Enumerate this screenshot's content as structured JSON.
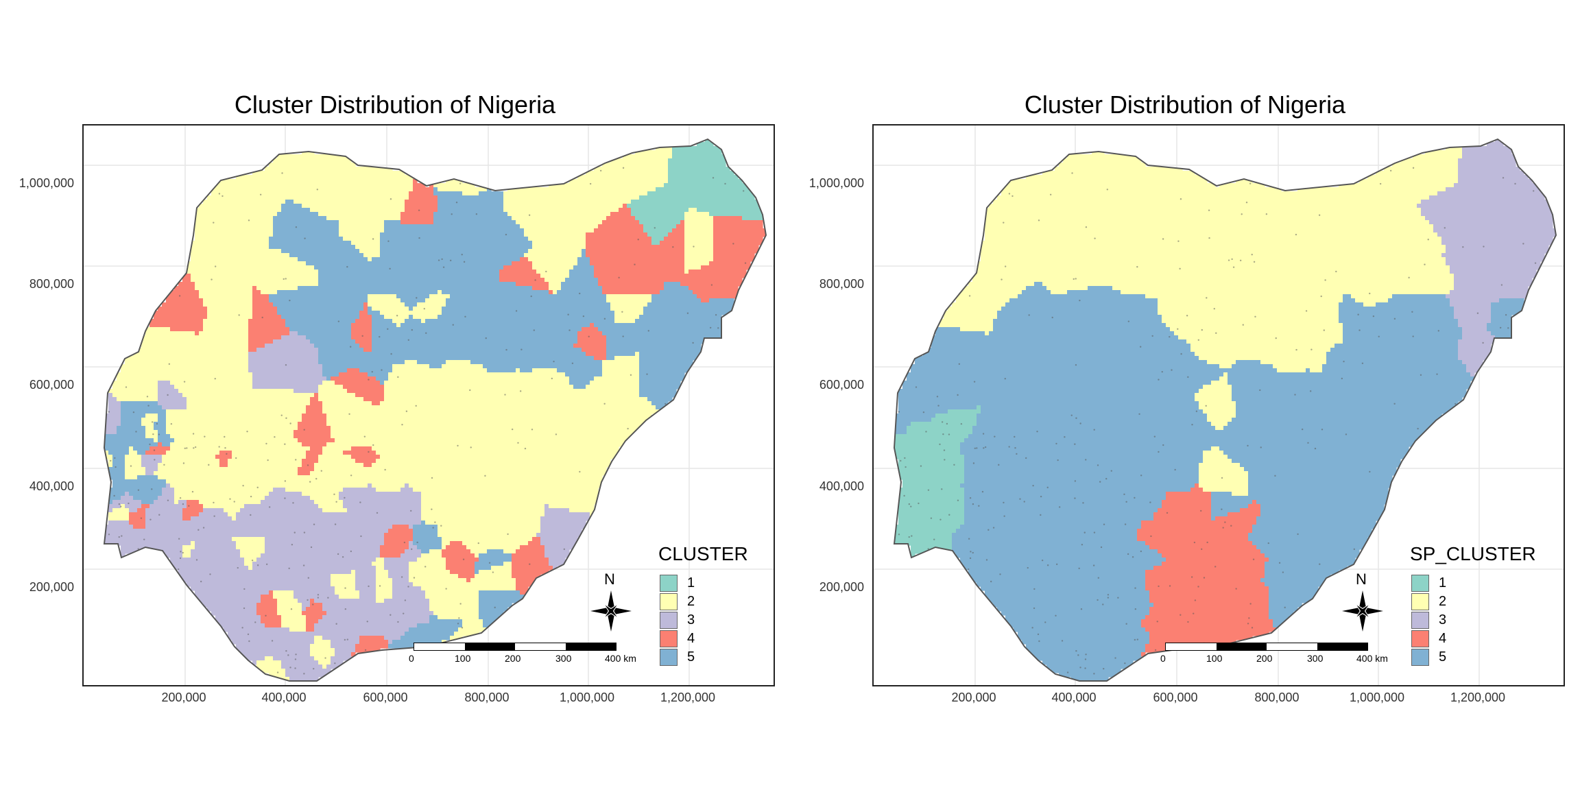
{
  "panels": [
    {
      "title": "Cluster Distribution of Nigeria",
      "legend_title": "CLUSTER",
      "pattern": "mixed"
    },
    {
      "title": "Cluster Distribution of Nigeria",
      "legend_title": "SP_CLUSTER",
      "pattern": "spatial"
    }
  ],
  "legend_items": [
    {
      "label": "1",
      "color": "#8DD3C7"
    },
    {
      "label": "2",
      "color": "#FFFFB3"
    },
    {
      "label": "3",
      "color": "#BEBADA"
    },
    {
      "label": "4",
      "color": "#FB8072"
    },
    {
      "label": "5",
      "color": "#80B1D3"
    }
  ],
  "y_ticks": [
    "1,000,000",
    "800,000",
    "600,000",
    "400,000",
    "200,000"
  ],
  "x_ticks": [
    "200,000",
    "400,000",
    "600,000",
    "800,000",
    "1,000,000",
    "1,200,000"
  ],
  "north_arrow_label": "N",
  "scale_bar_labels": [
    "0",
    "100",
    "200",
    "300",
    "400 km"
  ],
  "colors": {
    "border": "#555555",
    "grid": "#e6e6e6"
  }
}
